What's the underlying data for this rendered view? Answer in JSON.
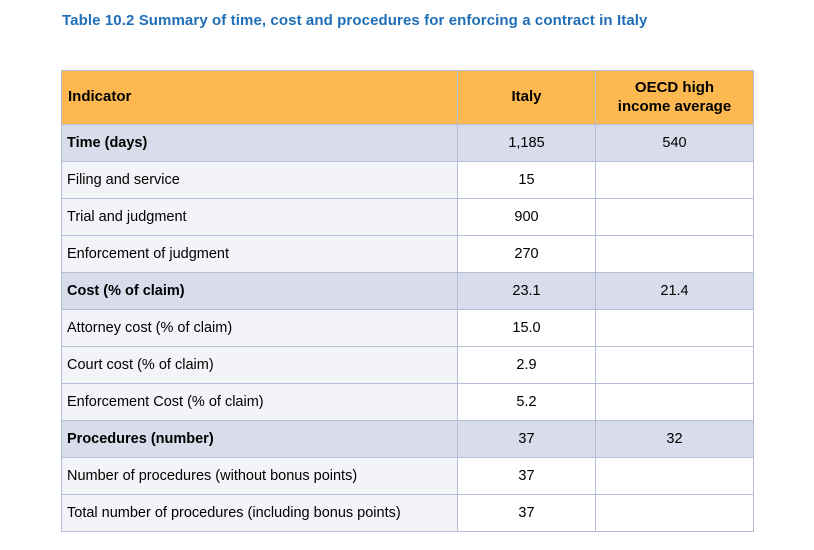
{
  "title": "Table 10.2 Summary of time, cost and procedures for enforcing a contract in Italy",
  "table": {
    "columns": [
      "Indicator",
      "Italy",
      "OECD high income average"
    ],
    "rows": [
      {
        "indicator": "Time (days)",
        "italy": "1,185",
        "oecd": "540",
        "bold": true
      },
      {
        "indicator": "Filing and service",
        "italy": "15",
        "oecd": "",
        "bold": false
      },
      {
        "indicator": "Trial and judgment",
        "italy": "900",
        "oecd": "",
        "bold": false
      },
      {
        "indicator": "Enforcement of judgment",
        "italy": "270",
        "oecd": "",
        "bold": false
      },
      {
        "indicator": "Cost (% of claim)",
        "italy": "23.1",
        "oecd": "21.4",
        "bold": true
      },
      {
        "indicator": "Attorney cost (% of claim)",
        "italy": "15.0",
        "oecd": "",
        "bold": false
      },
      {
        "indicator": "Court cost (% of claim)",
        "italy": "2.9",
        "oecd": "",
        "bold": false
      },
      {
        "indicator": "Enforcement Cost (% of claim)",
        "italy": "5.2",
        "oecd": "",
        "bold": false
      },
      {
        "indicator": "Procedures (number)",
        "italy": "37",
        "oecd": "32",
        "bold": true
      },
      {
        "indicator": "Number of procedures (without bonus points)",
        "italy": "37",
        "oecd": "",
        "bold": false
      },
      {
        "indicator": "Total number of procedures (including bonus points)",
        "italy": "37",
        "oecd": "",
        "bold": false
      }
    ]
  },
  "colors": {
    "header_bg": "#fdb94f",
    "category_row_bg": "#d9ddeb",
    "indicator_cell_bg": "#f2f4f8",
    "value_cell_bg": "#ffffff",
    "border": "#b3bdd6",
    "title_color": "#1f6fb8",
    "text_color": "#000000"
  }
}
